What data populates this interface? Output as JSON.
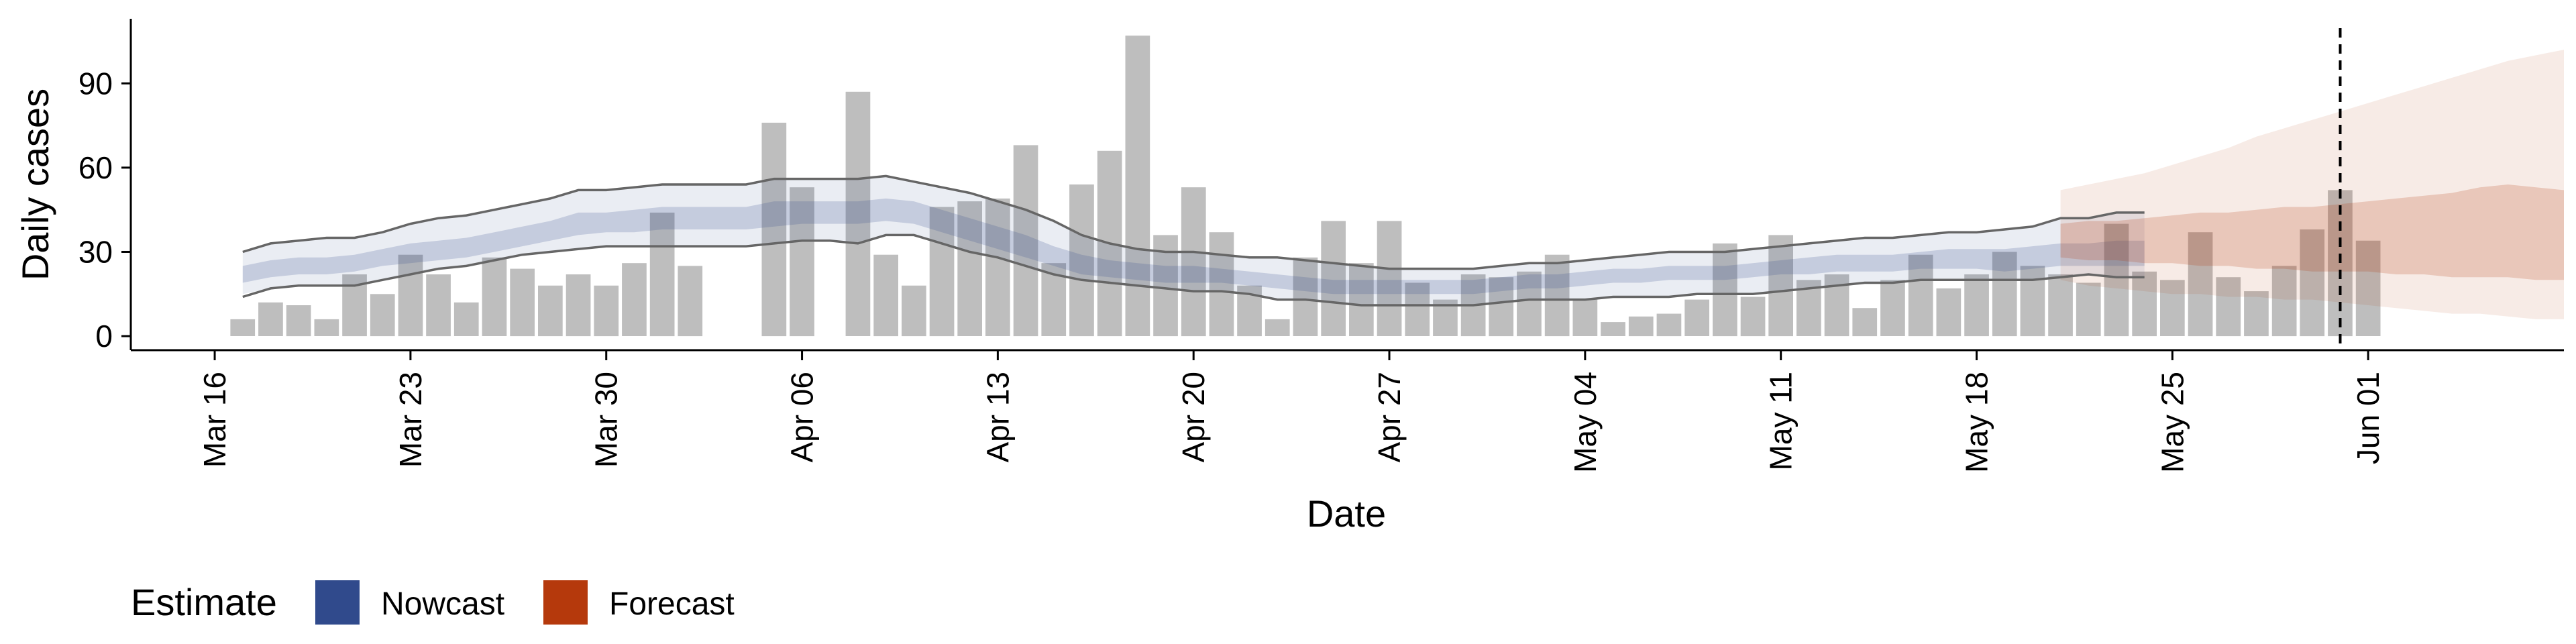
{
  "chart_data": {
    "type": "bar",
    "xlabel": "Date",
    "ylabel": "Daily cases",
    "ylim": [
      -5,
      113
    ],
    "y_ticks": [
      0,
      30,
      60,
      90
    ],
    "x_ticks": [
      {
        "date": "2020-03-16",
        "label": "Mar 16"
      },
      {
        "date": "2020-03-23",
        "label": "Mar 23"
      },
      {
        "date": "2020-03-30",
        "label": "Mar 30"
      },
      {
        "date": "2020-04-06",
        "label": "Apr 06"
      },
      {
        "date": "2020-04-13",
        "label": "Apr 13"
      },
      {
        "date": "2020-04-20",
        "label": "Apr 20"
      },
      {
        "date": "2020-04-27",
        "label": "Apr 27"
      },
      {
        "date": "2020-05-04",
        "label": "May 04"
      },
      {
        "date": "2020-05-11",
        "label": "May 11"
      },
      {
        "date": "2020-05-18",
        "label": "May 18"
      },
      {
        "date": "2020-05-25",
        "label": "May 25"
      },
      {
        "date": "2020-06-01",
        "label": "Jun 01"
      }
    ],
    "xlim": [
      "2020-03-13",
      "2020-06-08"
    ],
    "bar_start": "2020-03-17",
    "daily_cases": [
      6,
      12,
      11,
      6,
      22,
      15,
      29,
      22,
      12,
      28,
      24,
      18,
      22,
      18,
      26,
      44,
      25,
      null,
      null,
      76,
      53,
      null,
      87,
      29,
      18,
      46,
      48,
      49,
      68,
      26,
      54,
      66,
      107,
      36,
      53,
      37,
      18,
      6,
      28,
      41,
      26,
      41,
      19,
      13,
      22,
      21,
      23,
      29,
      13,
      5,
      7,
      8,
      13,
      33,
      14,
      36,
      20,
      22,
      10,
      20,
      29,
      17,
      22,
      30,
      25,
      22,
      19,
      40,
      23,
      20,
      37,
      21,
      16,
      25,
      38,
      52,
      34
    ],
    "nowcast_start": "2020-03-17",
    "nowcast": {
      "lower90": [
        15,
        17,
        18,
        18,
        18,
        20,
        22,
        24,
        25,
        27,
        29,
        30,
        31,
        32,
        32,
        32,
        32,
        32,
        32,
        33,
        34,
        34,
        33,
        36,
        36,
        33,
        30,
        28,
        25,
        22,
        20,
        19,
        18,
        17,
        16,
        16,
        15,
        13,
        13,
        12,
        11,
        11,
        11,
        11,
        11,
        12,
        13,
        13,
        13,
        14,
        14,
        14,
        15,
        15,
        15,
        16,
        17,
        18,
        19,
        19,
        20,
        20,
        20,
        20,
        20,
        21,
        22,
        21,
        21
      ],
      "upper90": [
        30,
        33,
        34,
        35,
        35,
        37,
        40,
        42,
        43,
        45,
        47,
        49,
        52,
        52,
        53,
        54,
        54,
        54,
        54,
        56,
        56,
        56,
        56,
        57,
        55,
        53,
        51,
        48,
        45,
        41,
        36,
        33,
        31,
        30,
        30,
        29,
        28,
        28,
        27,
        26,
        25,
        24,
        24,
        24,
        24,
        25,
        26,
        26,
        27,
        28,
        29,
        30,
        30,
        30,
        31,
        32,
        33,
        34,
        35,
        35,
        36,
        37,
        37,
        38,
        39,
        42,
        42,
        44,
        44
      ],
      "lower50": [
        19,
        21,
        22,
        22,
        23,
        25,
        26,
        27,
        28,
        30,
        32,
        34,
        36,
        37,
        37,
        38,
        38,
        38,
        38,
        39,
        40,
        40,
        40,
        41,
        40,
        37,
        34,
        31,
        28,
        25,
        22,
        21,
        20,
        19,
        19,
        19,
        18,
        17,
        16,
        15,
        15,
        15,
        15,
        15,
        15,
        16,
        17,
        17,
        18,
        19,
        19,
        20,
        20,
        20,
        21,
        22,
        22,
        23,
        23,
        23,
        24,
        24,
        24,
        23,
        24,
        25,
        25,
        25,
        25
      ],
      "upper50": [
        25,
        27,
        28,
        28,
        29,
        31,
        33,
        34,
        35,
        37,
        39,
        41,
        44,
        44,
        45,
        46,
        46,
        46,
        46,
        48,
        48,
        48,
        48,
        49,
        48,
        45,
        42,
        39,
        36,
        32,
        29,
        27,
        26,
        25,
        25,
        24,
        23,
        22,
        21,
        20,
        20,
        20,
        20,
        20,
        20,
        21,
        22,
        22,
        23,
        24,
        24,
        25,
        25,
        25,
        26,
        27,
        28,
        29,
        29,
        29,
        30,
        31,
        31,
        31,
        32,
        33,
        33,
        34,
        34
      ],
      "reported_lower": [
        14,
        17,
        18,
        18,
        18,
        20,
        22,
        24,
        25,
        27,
        29,
        30,
        31,
        32,
        32,
        32,
        32,
        32,
        32,
        33,
        34,
        34,
        33,
        36,
        36,
        33,
        30,
        28,
        25,
        22,
        20,
        19,
        18,
        17,
        16,
        16,
        15,
        13,
        13,
        12,
        11,
        11,
        11,
        11,
        11,
        12,
        13,
        13,
        13,
        14,
        14,
        14,
        15,
        15,
        15,
        16,
        17,
        18,
        19,
        19,
        20,
        20,
        20,
        20,
        20,
        21,
        22,
        21,
        21
      ],
      "reported_upper": [
        30,
        33,
        34,
        35,
        35,
        37,
        40,
        42,
        43,
        45,
        47,
        49,
        52,
        52,
        53,
        54,
        54,
        54,
        54,
        56,
        56,
        56,
        56,
        57,
        55,
        53,
        51,
        48,
        45,
        41,
        36,
        33,
        31,
        30,
        30,
        29,
        28,
        28,
        27,
        26,
        25,
        24,
        24,
        24,
        24,
        25,
        26,
        26,
        27,
        28,
        29,
        30,
        30,
        30,
        31,
        32,
        33,
        34,
        35,
        35,
        36,
        37,
        37,
        38,
        39,
        42,
        42,
        44,
        44
      ]
    },
    "forecast_start": "2020-05-21",
    "forecast": {
      "lower90": [
        20,
        18,
        17,
        16,
        15,
        15,
        14,
        14,
        13,
        13,
        12,
        11,
        10,
        9,
        8,
        8,
        7,
        6,
        6
      ],
      "upper90": [
        52,
        54,
        56,
        58,
        61,
        64,
        67,
        71,
        74,
        77,
        80,
        83,
        86,
        89,
        92,
        95,
        98,
        100,
        102
      ],
      "lower50": [
        28,
        27,
        27,
        26,
        26,
        25,
        25,
        24,
        24,
        23,
        23,
        23,
        22,
        22,
        21,
        21,
        21,
        20,
        20
      ],
      "upper50": [
        40,
        41,
        41,
        42,
        43,
        44,
        44,
        45,
        46,
        46,
        47,
        48,
        49,
        50,
        51,
        53,
        54,
        53,
        52
      ]
    },
    "vline_date": "2020-05-31",
    "legend": {
      "position": "bottom-left",
      "title": "Estimate",
      "items": [
        {
          "label": "Nowcast",
          "color": "#304A8C"
        },
        {
          "label": "Forecast",
          "color": "#B5390C"
        }
      ]
    },
    "colors": {
      "bar": "#BEBEBE",
      "nowcast": "#304A8C",
      "forecast": "#B5390C",
      "reported_line": "#666666",
      "vline": "#000000"
    },
    "grid": false
  }
}
